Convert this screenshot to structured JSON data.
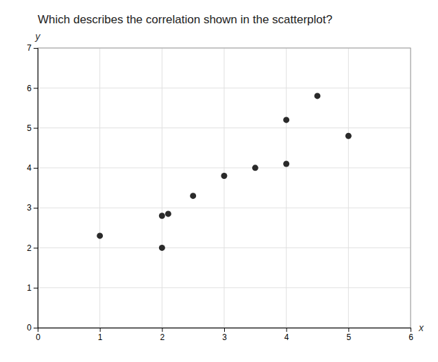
{
  "chart_data": {
    "type": "scatter",
    "title": "Which describes the correlation shown in the scatterplot?",
    "x": [
      1,
      2,
      2,
      2.1,
      2.5,
      3,
      3.5,
      4,
      4,
      4.5,
      5
    ],
    "values": [
      2.3,
      2.0,
      2.8,
      2.85,
      3.3,
      3.8,
      4.0,
      4.1,
      5.2,
      5.8,
      4.8
    ],
    "color": "#2a2a2a",
    "xlim": [
      0,
      6
    ],
    "ylim": [
      0,
      7
    ],
    "xticks": [
      0,
      1,
      2,
      3,
      4,
      5,
      6
    ],
    "yticks": [
      0,
      1,
      2,
      3,
      4,
      5,
      6,
      7
    ],
    "xlabel": "x",
    "ylabel": "y",
    "grid": true
  }
}
